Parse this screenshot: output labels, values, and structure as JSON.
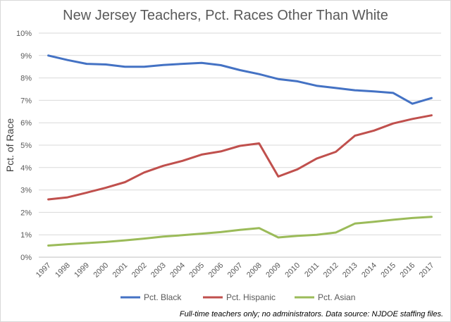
{
  "chart_data": {
    "type": "line",
    "title": "New Jersey Teachers, Pct. Races Other Than White",
    "ylabel": "Pct. of Race",
    "xlabel": "",
    "ylim": [
      0,
      10
    ],
    "grid": "horizontal",
    "legend_position": "bottom",
    "note": "Full-time teachers only; no administrators. Data source: NJDOE staffing files.",
    "x": [
      "1997",
      "1998",
      "1999",
      "2000",
      "2001",
      "2002",
      "2003",
      "2004",
      "2005",
      "2006",
      "2007",
      "2008",
      "2009",
      "2010",
      "2011",
      "2012",
      "2013",
      "2014",
      "2015",
      "2016",
      "2017"
    ],
    "y_ticks": [
      "0%",
      "1%",
      "2%",
      "3%",
      "4%",
      "5%",
      "6%",
      "7%",
      "8%",
      "9%",
      "10%"
    ],
    "series": [
      {
        "name": "Pct. Black",
        "color": "#4472c4",
        "values": [
          9.0,
          8.8,
          8.63,
          8.6,
          8.5,
          8.5,
          8.58,
          8.63,
          8.67,
          8.57,
          8.35,
          8.17,
          7.95,
          7.85,
          7.65,
          7.55,
          7.45,
          7.4,
          7.33,
          6.85,
          7.1
        ]
      },
      {
        "name": "Pct. Hispanic",
        "color": "#c0504d",
        "values": [
          2.58,
          2.67,
          2.88,
          3.1,
          3.35,
          3.78,
          4.08,
          4.3,
          4.58,
          4.72,
          4.97,
          5.08,
          3.6,
          3.92,
          4.4,
          4.7,
          5.42,
          5.65,
          5.97,
          6.17,
          6.33
        ]
      },
      {
        "name": "Pct. Asian",
        "color": "#9bbb59",
        "values": [
          0.52,
          0.58,
          0.63,
          0.68,
          0.75,
          0.83,
          0.92,
          0.98,
          1.05,
          1.12,
          1.22,
          1.3,
          0.88,
          0.95,
          1.0,
          1.1,
          1.5,
          1.58,
          1.67,
          1.75,
          1.8
        ]
      }
    ]
  }
}
